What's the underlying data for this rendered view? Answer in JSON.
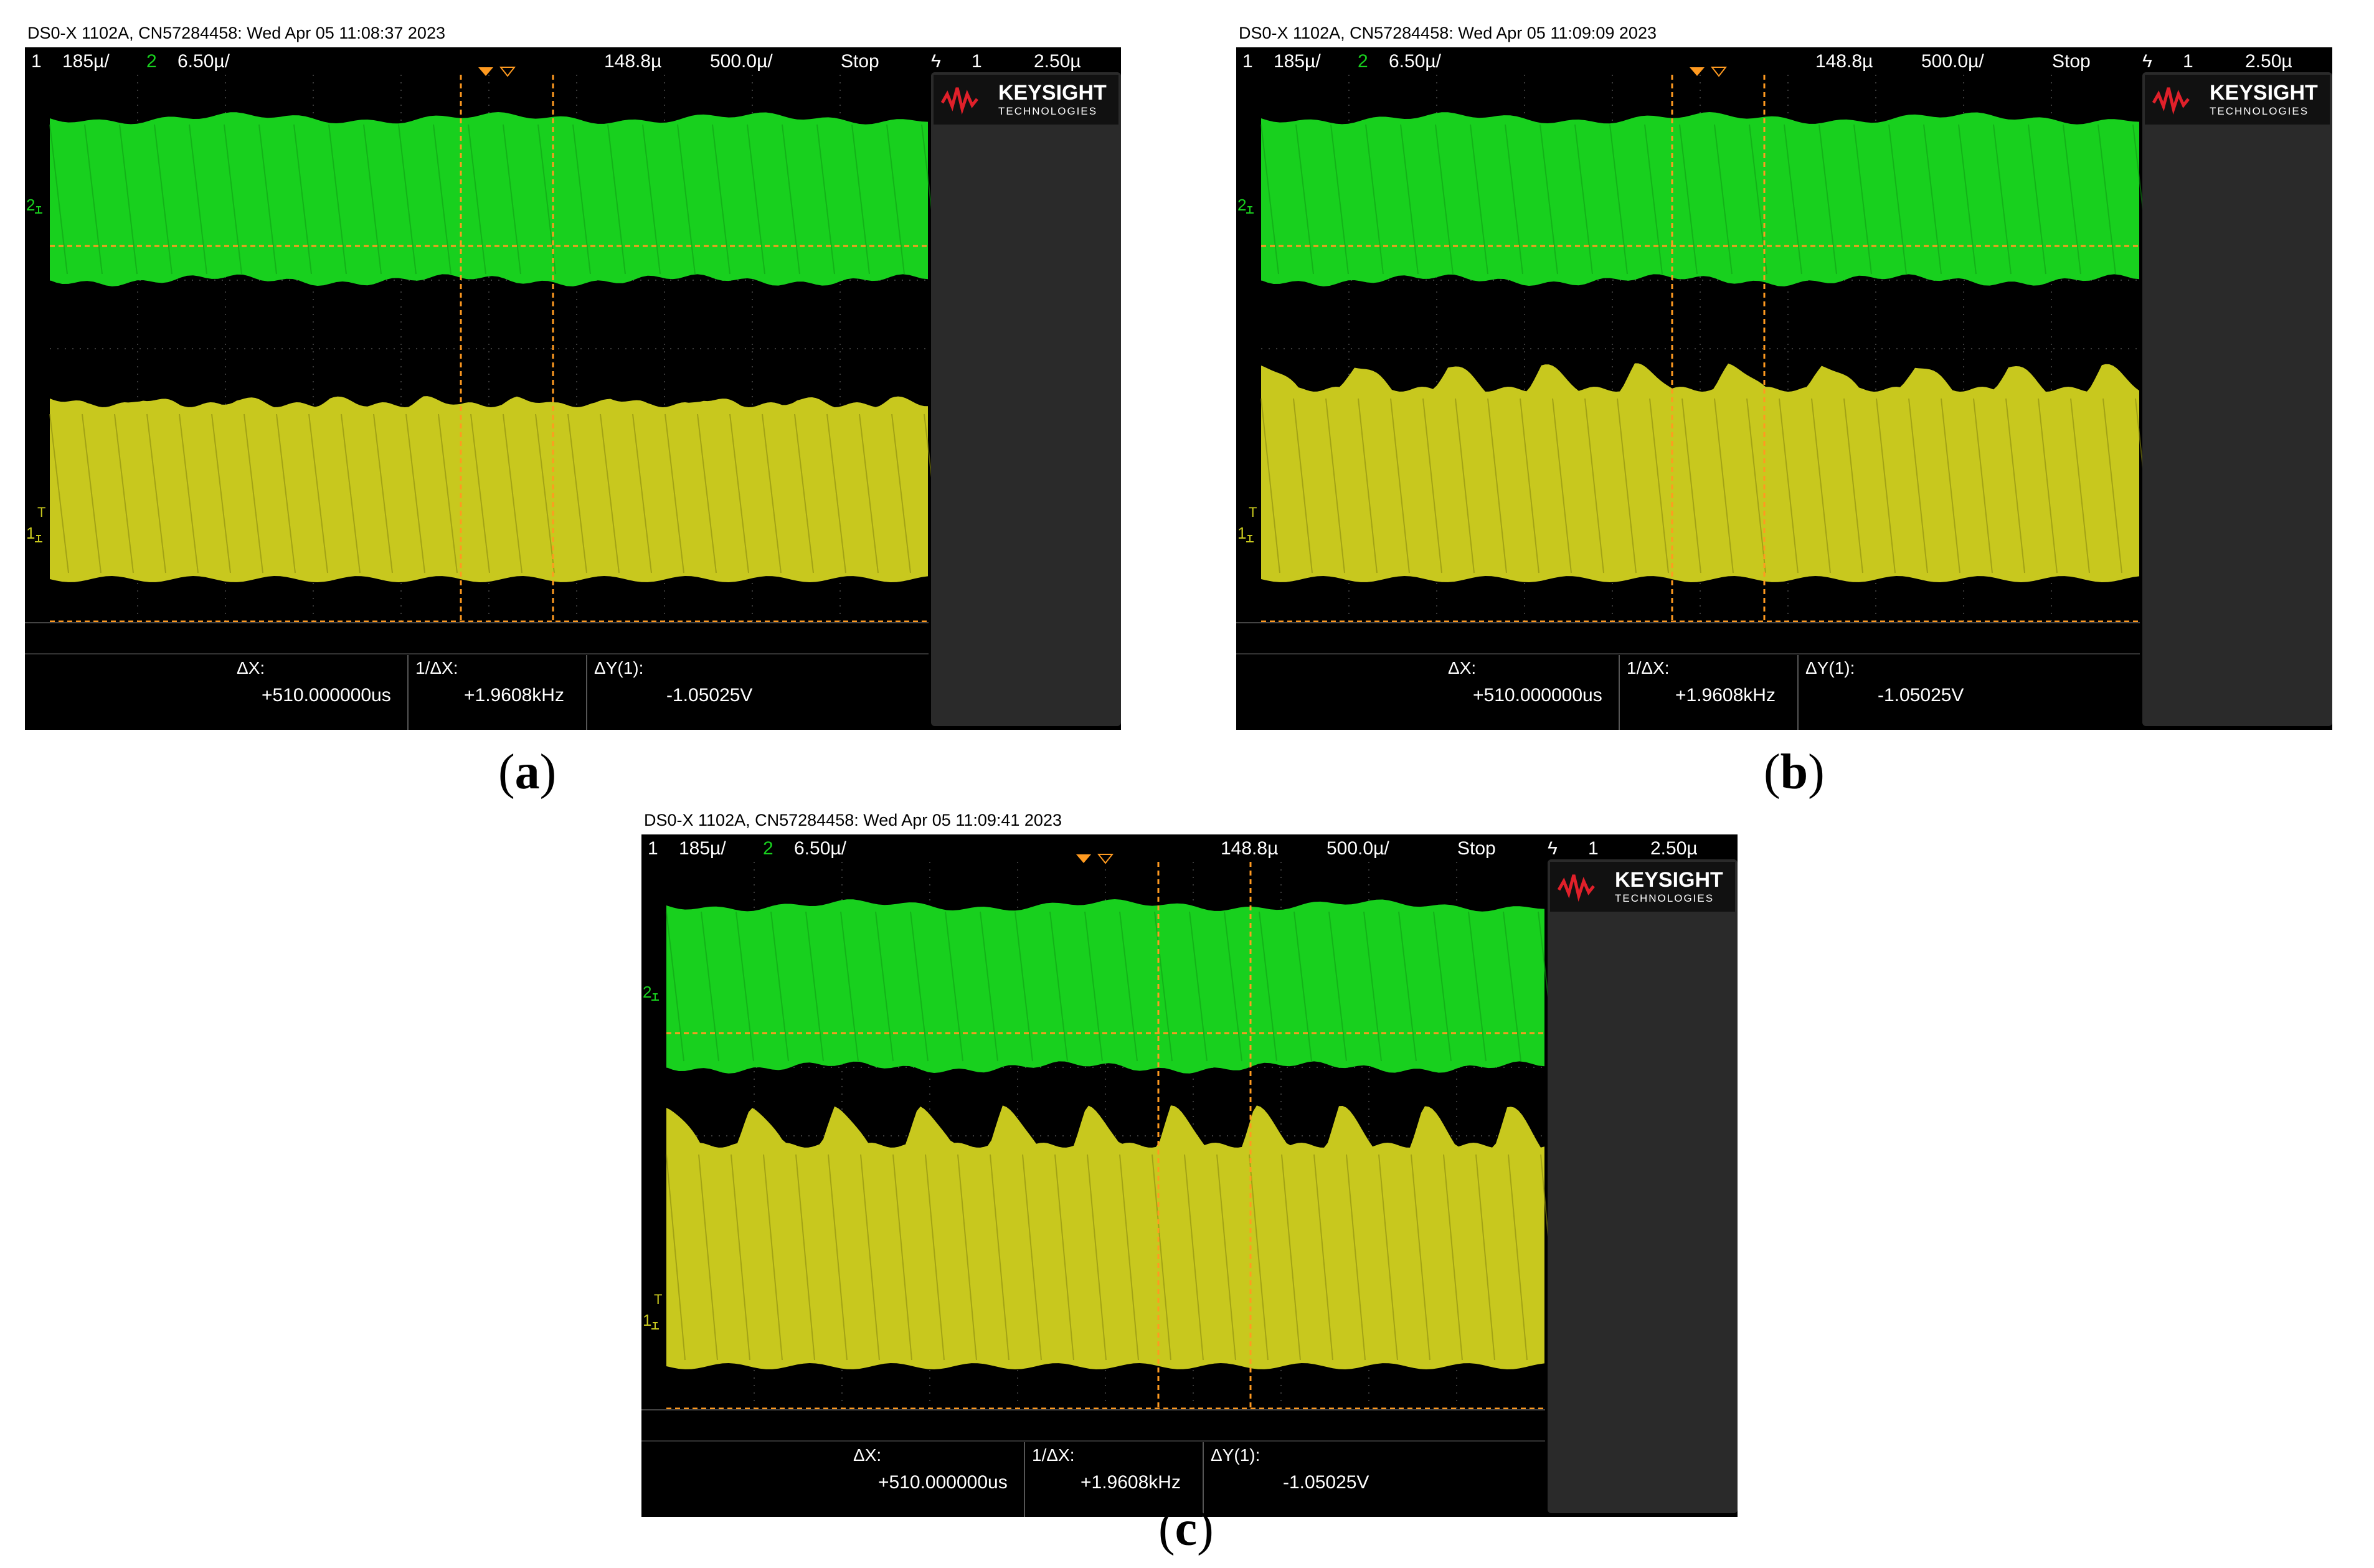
{
  "panels": [
    {
      "label_open": "(",
      "label_letter": "a",
      "label_close": ")",
      "header": "DS0-X 1102A, CN57284458: Wed Apr 05 11:08:37 2023",
      "status": {
        "ch1": "1",
        "ch1_scale": "185µ/",
        "ch2": "2",
        "ch2_scale": "6.50µ/",
        "delay": "148.8µ",
        "timebase": "500.0µ/",
        "run_state": "Stop",
        "trig_icon": "ϟ",
        "trig_src": "1",
        "trig_level": "2.50µ"
      },
      "brand": {
        "name": "KEYSIGHT",
        "sub": "TECHNOLOGIES"
      },
      "markers": {
        "ch2": "2",
        "ch1": "1",
        "trig": "T"
      },
      "measure": {
        "dx_label": "ΔX:",
        "dx_value": "+510.000000us",
        "inv_label": "1/ΔX:",
        "inv_value": "+1.9608kHz",
        "dy_label": "ΔY(1):",
        "dy_value": "-1.05025V"
      },
      "yellow_wave": "flat"
    },
    {
      "label_open": "(",
      "label_letter": "b",
      "label_close": ")",
      "header": "DS0-X 1102A, CN57284458: Wed Apr 05 11:09:09 2023",
      "status": {
        "ch1": "1",
        "ch1_scale": "185µ/",
        "ch2": "2",
        "ch2_scale": "6.50µ/",
        "delay": "148.8µ",
        "timebase": "500.0µ/",
        "run_state": "Stop",
        "trig_icon": "ϟ",
        "trig_src": "1",
        "trig_level": "2.50µ"
      },
      "brand": {
        "name": "KEYSIGHT",
        "sub": "TECHNOLOGIES"
      },
      "markers": {
        "ch2": "2",
        "ch1": "1",
        "trig": "T"
      },
      "measure": {
        "dx_label": "ΔX:",
        "dx_value": "+510.000000us",
        "inv_label": "1/ΔX:",
        "inv_value": "+1.9608kHz",
        "dy_label": "ΔY(1):",
        "dy_value": "-1.05025V"
      },
      "yellow_wave": "bumps"
    },
    {
      "label_open": "(",
      "label_letter": "c",
      "label_close": ")",
      "header": "DS0-X 1102A, CN57284458: Wed Apr 05 11:09:41 2023",
      "status": {
        "ch1": "1",
        "ch1_scale": "185µ/",
        "ch2": "2",
        "ch2_scale": "6.50µ/",
        "delay": "148.8µ",
        "timebase": "500.0µ/",
        "run_state": "Stop",
        "trig_icon": "ϟ",
        "trig_src": "1",
        "trig_level": "2.50µ"
      },
      "brand": {
        "name": "KEYSIGHT",
        "sub": "TECHNOLOGIES"
      },
      "markers": {
        "ch2": "2",
        "ch1": "1",
        "trig": "T"
      },
      "measure": {
        "dx_label": "ΔX:",
        "dx_value": "+510.000000us",
        "inv_label": "1/ΔX:",
        "inv_value": "+1.9608kHz",
        "dy_label": "ΔY(1):",
        "dy_value": "-1.05025V"
      },
      "yellow_wave": "bumps-large"
    }
  ],
  "colors": {
    "ch1": "#c8c81e",
    "ch2": "#18d01e",
    "screen": "#000000",
    "panel_bg": "#2a2a2a",
    "cursor": "#ff9a20",
    "text": "#ffffff",
    "logo": "#e0202a"
  }
}
